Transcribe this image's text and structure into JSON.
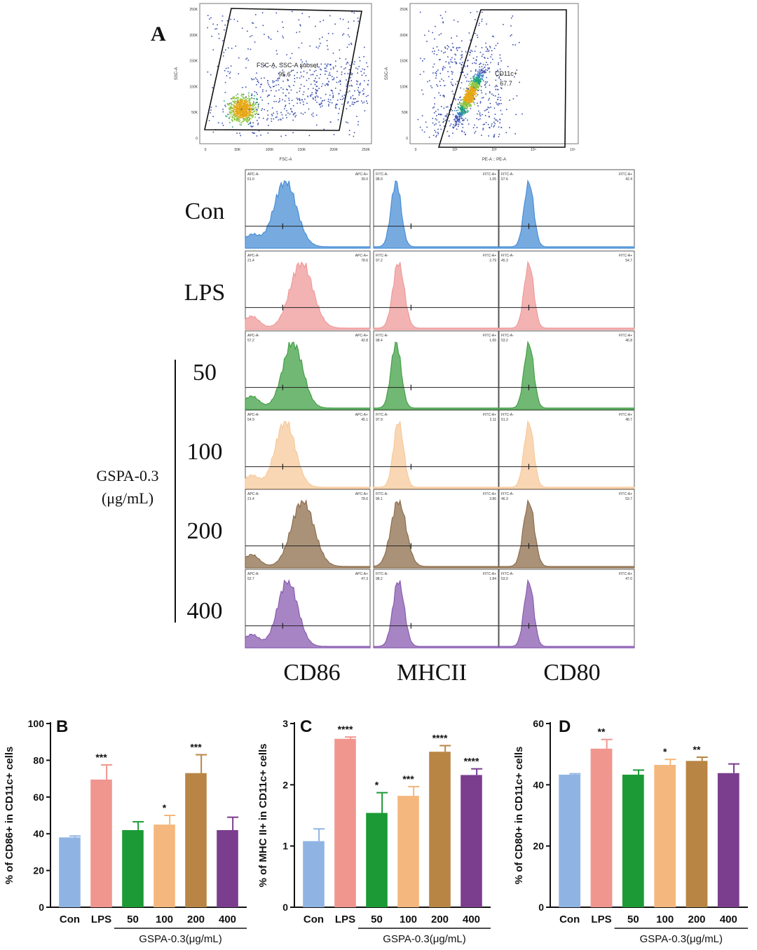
{
  "panel_labels": {
    "a": "A",
    "b": "B",
    "c": "C",
    "d": "D"
  },
  "flow": {
    "scatter1": {
      "gate_label": "FSC-A, SSC-A subset",
      "gate_value": "95.6",
      "xlabel": "FSC-A",
      "ylabel": "SSC-A",
      "xticks": [
        "0",
        "50K",
        "100K",
        "150K",
        "200K",
        "250K"
      ],
      "yticks": [
        "0",
        "50K",
        "100K",
        "150K",
        "200K",
        "250K"
      ]
    },
    "scatter2": {
      "gate_label": "CD11c+",
      "gate_value": "67.7",
      "xlabel": "PE-A :: PE-A",
      "ylabel": "SSC-A",
      "xticks": [
        "0",
        "10²",
        "10³",
        "10⁴",
        "10⁵"
      ],
      "yticks": [
        "0",
        "50K",
        "100K",
        "150K",
        "200K",
        "250K"
      ]
    },
    "row_labels": [
      "Con",
      "LPS",
      "50",
      "100",
      "200",
      "400"
    ],
    "group_label_1": "GSPA-0.3",
    "group_label_2": "(μg/mL)",
    "markers": [
      "CD86",
      "MHCII",
      "CD80"
    ],
    "row_colors": [
      "#4a8fd6",
      "#ef9a9a",
      "#43a047",
      "#f7c99b",
      "#8d6e4c",
      "#8a5cb0"
    ],
    "hist_tags": [
      [
        [
          "APC-A-",
          "APC-A+",
          "61.0",
          "39.0"
        ],
        [
          "FITC-A-",
          "FITC-A+",
          "98.9",
          "1.05"
        ],
        [
          "FITC-A-",
          "FITC-A+",
          "57.6",
          "42.4"
        ]
      ],
      [
        [
          "APC-A-",
          "APC-A+",
          "21.4",
          "78.6"
        ],
        [
          "FITC-A-",
          "FITC-A+",
          "97.2",
          "2.79"
        ],
        [
          "FITC-A-",
          "FITC-A+",
          "45.3",
          "54.7"
        ]
      ],
      [
        [
          "APC-A-",
          "APC-A+",
          "57.2",
          "42.8"
        ],
        [
          "FITC-A-",
          "FITC-A+",
          "98.4",
          "1.65"
        ],
        [
          "FITC-A-",
          "FITC-A+",
          "53.2",
          "46.8"
        ]
      ],
      [
        [
          "APC-A-",
          "APC-A+",
          "54.9",
          "45.1"
        ],
        [
          "FITC-A-",
          "FITC-A+",
          "97.9",
          "2.11"
        ],
        [
          "FITC-A-",
          "FITC-A+",
          "51.3",
          "48.7"
        ]
      ],
      [
        [
          "APC-A-",
          "APC-A+",
          "21.4",
          "78.6"
        ],
        [
          "FITC-A-",
          "FITC-A+",
          "96.1",
          "3.86"
        ],
        [
          "FITC-A-",
          "FITC-A+",
          "46.3",
          "53.7"
        ]
      ],
      [
        [
          "APC-A-",
          "APC-A+",
          "52.7",
          "47.3"
        ],
        [
          "FITC-A-",
          "FITC-A+",
          "98.2",
          "1.84"
        ],
        [
          "FITC-A-",
          "FITC-A+",
          "53.0",
          "47.0"
        ]
      ]
    ]
  },
  "chart_data": [
    {
      "type": "bar",
      "panel": "B",
      "ylabel": "% of CD86+ in CD11c+ cells",
      "ylim": [
        0,
        100
      ],
      "yticks": [
        0,
        20,
        40,
        60,
        80,
        100
      ],
      "categories": [
        "Con",
        "LPS",
        "50",
        "100",
        "200",
        "400"
      ],
      "group_label": "GSPA-0.3(μg/mL)",
      "values": [
        38,
        69.5,
        42,
        45,
        73,
        42
      ],
      "errors": [
        0.8,
        8,
        4.5,
        5,
        10,
        7
      ],
      "significance": [
        "",
        "***",
        "",
        "*",
        "***",
        ""
      ],
      "colors": [
        "#8fb4e3",
        "#f0968f",
        "#1b9a35",
        "#f4b77d",
        "#b98544",
        "#7b3d8e"
      ]
    },
    {
      "type": "bar",
      "panel": "C",
      "ylabel": "% of MHC II+ in CD11c+ cells",
      "ylim": [
        0,
        3
      ],
      "yticks": [
        0,
        1,
        2,
        3
      ],
      "categories": [
        "Con",
        "LPS",
        "50",
        "100",
        "200",
        "400"
      ],
      "group_label": "GSPA-0.3(μg/mL)",
      "values": [
        1.08,
        2.75,
        1.54,
        1.82,
        2.54,
        2.16
      ],
      "errors": [
        0.2,
        0.03,
        0.33,
        0.15,
        0.1,
        0.1
      ],
      "significance": [
        "",
        "****",
        "*",
        "***",
        "****",
        "****"
      ],
      "colors": [
        "#8fb4e3",
        "#f0968f",
        "#1b9a35",
        "#f4b77d",
        "#b98544",
        "#7b3d8e"
      ]
    },
    {
      "type": "bar",
      "panel": "D",
      "ylabel": "% of CD80+ in CD11c+ cells",
      "ylim": [
        0,
        60
      ],
      "yticks": [
        0,
        20,
        40,
        60
      ],
      "categories": [
        "Con",
        "LPS",
        "50",
        "100",
        "200",
        "400"
      ],
      "group_label": "GSPA-0.3(μg/mL)",
      "values": [
        43.3,
        51.8,
        43.3,
        46.5,
        47.8,
        43.8
      ],
      "errors": [
        0.3,
        3,
        1.5,
        1.8,
        1.2,
        3
      ],
      "significance": [
        "",
        "**",
        "",
        "*",
        "**",
        ""
      ],
      "colors": [
        "#8fb4e3",
        "#f0968f",
        "#1b9a35",
        "#f4b77d",
        "#b98544",
        "#7b3d8e"
      ]
    }
  ]
}
